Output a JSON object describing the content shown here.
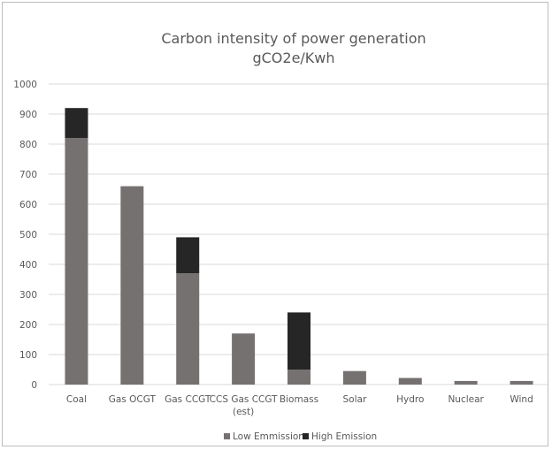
{
  "chart_data": {
    "type": "bar",
    "stacked": true,
    "title": "Carbon intensity of  power generation",
    "subtitle": "gCO2e/Kwh",
    "xlabel": "",
    "ylabel": "",
    "ylim": [
      0,
      1000
    ],
    "yticks": [
      0,
      100,
      200,
      300,
      400,
      500,
      600,
      700,
      800,
      900,
      1000
    ],
    "grid": true,
    "legend_position": "bottom",
    "categories": [
      [
        "Coal"
      ],
      [
        "Gas OCGT"
      ],
      [
        "Gas CCGT"
      ],
      [
        "CCS Gas CCGT",
        "(est)"
      ],
      [
        "Biomass"
      ],
      [
        "Solar"
      ],
      [
        "Hydro"
      ],
      [
        "Nuclear"
      ],
      [
        "Wind"
      ]
    ],
    "series": [
      {
        "name": "Low Emmission",
        "color": "#767171",
        "values": [
          820,
          660,
          370,
          170,
          50,
          45,
          22,
          12,
          12
        ]
      },
      {
        "name": "High Emission",
        "color": "#262626",
        "values": [
          100,
          0,
          120,
          0,
          190,
          0,
          0,
          0,
          0
        ]
      }
    ]
  }
}
